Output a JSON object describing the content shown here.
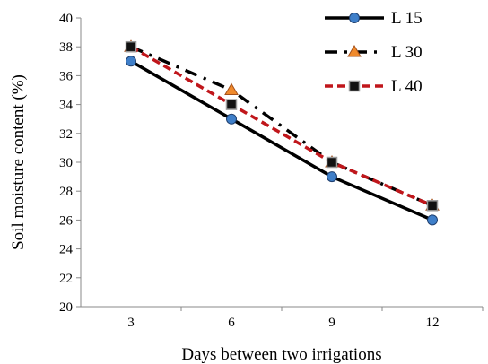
{
  "chart_data": {
    "type": "line",
    "xlabel": "Days between two irrigations",
    "ylabel": "Soil moisture content (%)",
    "categories": [
      "3",
      "6",
      "9",
      "12"
    ],
    "ylim": [
      20,
      40
    ],
    "yticks": [
      "20",
      "22",
      "24",
      "26",
      "28",
      "30",
      "32",
      "34",
      "36",
      "38",
      "40"
    ],
    "grid": false,
    "legend_position": "top-right",
    "series": [
      {
        "name": "L 15",
        "values": [
          37,
          33,
          29,
          26
        ],
        "color": "#000000",
        "line_style": "solid",
        "marker": "circle",
        "marker_color": "#3f7fc9"
      },
      {
        "name": "L 30",
        "values": [
          38,
          35,
          30,
          27
        ],
        "color": "#000000",
        "line_style": "dash-dot",
        "marker": "triangle",
        "marker_color": "#f08a2c"
      },
      {
        "name": "L 40",
        "values": [
          38,
          34,
          30,
          27
        ],
        "color": "#c0161b",
        "line_style": "dashed",
        "marker": "square",
        "marker_color": "#111111"
      }
    ]
  }
}
